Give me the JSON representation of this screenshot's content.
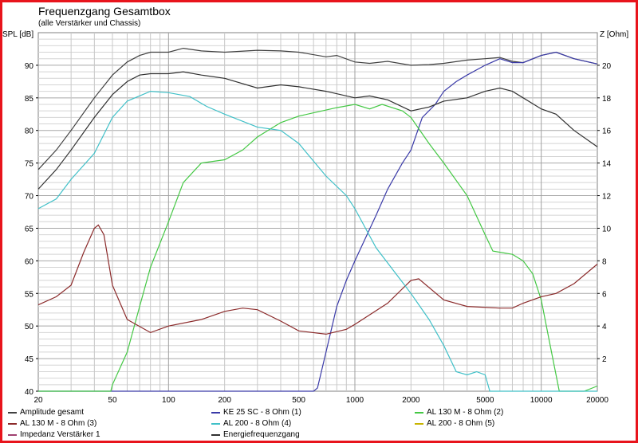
{
  "chart_data": {
    "type": "line",
    "title": "Frequenzgang Gesamtbox",
    "subtitle": "(alle Verstärker und Chassis)",
    "ylabel": "SPL [dB]",
    "y2label": "Z [Ohm]",
    "xscale": "log",
    "xlim": [
      20,
      20000
    ],
    "ylim": [
      40,
      95
    ],
    "y2lim": [
      0,
      22
    ],
    "grid": true,
    "legend_position": "bottom",
    "x_ticks": [
      "20",
      "50",
      "100",
      "200",
      "500",
      "1000",
      "2000",
      "5000",
      "10000",
      "20000"
    ],
    "y_ticks": [
      "40",
      "45",
      "50",
      "55",
      "60",
      "65",
      "70",
      "75",
      "80",
      "85",
      "90"
    ],
    "y2_ticks": [
      "2",
      "4",
      "6",
      "8",
      "10",
      "12",
      "14",
      "16",
      "18",
      "20"
    ],
    "series": [
      {
        "name": "Amplitude gesamt",
        "color": "#404040",
        "axis": "left",
        "x": [
          20,
          25,
          30,
          40,
          50,
          60,
          70,
          80,
          100,
          120,
          150,
          200,
          300,
          400,
          500,
          700,
          800,
          1000,
          1200,
          1500,
          2000,
          2500,
          3000,
          4000,
          5000,
          6000,
          7000,
          8000,
          10000,
          12000,
          15000,
          20000
        ],
        "y": [
          74,
          77,
          80,
          85,
          88.5,
          90.5,
          91.5,
          92,
          92,
          92.6,
          92.2,
          92,
          92.3,
          92.2,
          92,
          91.3,
          91.5,
          90.5,
          90.3,
          90.6,
          90,
          90.1,
          90.3,
          90.8,
          91,
          91.2,
          90.6,
          90.4,
          91.5,
          92,
          91,
          90.2
        ]
      },
      {
        "name": "KE 25 SC - 8 Ohm    (1)",
        "color": "#3a3aa8",
        "axis": "left",
        "x": [
          20,
          600,
          630,
          700,
          800,
          900,
          1000,
          1300,
          1500,
          1800,
          2000,
          2300,
          2700,
          3000,
          3500,
          4000,
          5000,
          6000,
          7000,
          8000,
          10000,
          12000,
          15000,
          20000
        ],
        "y": [
          40,
          40,
          40.5,
          46,
          53,
          57,
          60,
          67,
          71,
          75,
          77,
          82,
          84,
          86,
          87.5,
          88.5,
          90,
          91,
          90.4,
          90.4,
          91.5,
          92,
          91,
          90.2
        ]
      },
      {
        "name": "AL 130 M - 8 Ohm (2)",
        "color": "#44c844",
        "axis": "left",
        "x": [
          20,
          49,
          50,
          60,
          70,
          80,
          100,
          120,
          150,
          200,
          250,
          300,
          400,
          500,
          600,
          800,
          1000,
          1200,
          1400,
          1800,
          2000,
          2500,
          3000,
          4000,
          5000,
          5500,
          7000,
          8000,
          9000,
          10000,
          11000,
          12500,
          17000,
          20000
        ],
        "y": [
          40,
          40,
          41,
          46,
          53,
          59,
          66,
          72,
          75,
          75.5,
          77,
          79,
          81.2,
          82.2,
          82.7,
          83.5,
          84,
          83.3,
          84,
          83,
          82,
          78,
          75,
          70,
          64,
          61.5,
          61,
          60,
          58,
          54,
          48,
          40,
          40,
          40.8
        ]
      },
      {
        "name": "AL 130 M - 8 Ohm (3)",
        "color": "#8b2a2a",
        "axis": "right",
        "x": [
          20,
          25,
          30,
          35,
          40,
          42,
          45,
          50,
          60,
          80,
          100,
          150,
          200,
          250,
          300,
          400,
          500,
          700,
          900,
          1000,
          1500,
          2000,
          2200,
          3000,
          4000,
          6000,
          7000,
          8000,
          10000,
          12000,
          15000,
          20000
        ],
        "y": [
          5.3,
          5.8,
          6.5,
          8.5,
          10,
          10.2,
          9.6,
          6.5,
          4.4,
          3.6,
          4,
          4.4,
          4.9,
          5.1,
          5,
          4.3,
          3.7,
          3.5,
          3.8,
          4.1,
          5.4,
          6.8,
          6.9,
          5.6,
          5.2,
          5.1,
          5.1,
          5.4,
          5.8,
          6,
          6.6,
          7.8
        ]
      },
      {
        "name": "AL 200 - 8 Ohm (4)",
        "color": "#40c0c8",
        "axis": "left",
        "x": [
          20,
          25,
          30,
          40,
          50,
          60,
          80,
          100,
          130,
          160,
          200,
          300,
          400,
          500,
          700,
          900,
          1000,
          1300,
          2000,
          2500,
          3000,
          3500,
          4000,
          4500,
          5000,
          5300,
          20000
        ],
        "y": [
          68,
          69.5,
          72.5,
          76.5,
          82,
          84.5,
          86,
          85.8,
          85.2,
          83.7,
          82.5,
          80.5,
          80,
          78,
          73,
          70,
          68,
          62,
          55,
          51,
          47,
          43,
          42.5,
          43,
          42.5,
          40,
          40
        ]
      },
      {
        "name": "AL 200 - 8 Ohm (5)",
        "color": "#c8b400",
        "axis": "left",
        "x": [],
        "y": []
      },
      {
        "name": "Impedanz Verstärker 1",
        "color": "#a04070",
        "axis": "right",
        "x": [],
        "y": []
      },
      {
        "name": "Energiefrequenzgang",
        "color": "#303030",
        "axis": "left",
        "x": [
          20,
          25,
          30,
          40,
          50,
          60,
          70,
          80,
          100,
          120,
          150,
          200,
          300,
          400,
          500,
          700,
          1000,
          1200,
          1500,
          2000,
          2500,
          3000,
          4000,
          5000,
          6000,
          7000,
          8000,
          10000,
          12000,
          15000,
          20000
        ],
        "y": [
          71,
          74,
          77,
          82,
          85.5,
          87.5,
          88.5,
          88.7,
          88.7,
          89,
          88.5,
          88,
          86.5,
          87,
          86.7,
          86,
          85,
          85.3,
          84.7,
          83,
          83.6,
          84.5,
          85,
          86,
          86.5,
          86,
          85,
          83.3,
          82.5,
          80,
          77.5
        ]
      }
    ]
  }
}
